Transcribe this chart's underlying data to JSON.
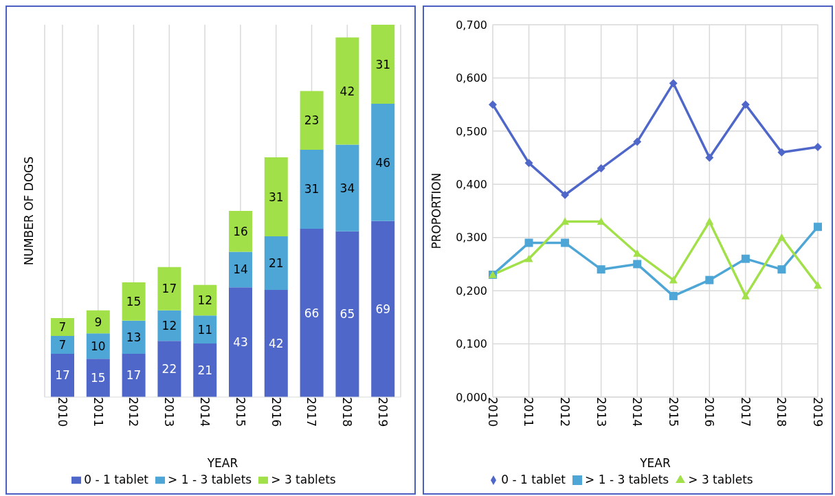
{
  "chart_data": [
    {
      "type": "bar",
      "stacked": true,
      "xlabel": "YEAR",
      "ylabel": "NUMBER OF DOGS",
      "categories": [
        "2010",
        "2011",
        "2012",
        "2013",
        "2014",
        "2015",
        "2016",
        "2017",
        "2018",
        "2019"
      ],
      "series": [
        {
          "name": "0 - 1 tablet",
          "color": "#4f67c8",
          "values": [
            17,
            15,
            17,
            22,
            21,
            43,
            42,
            66,
            65,
            69
          ]
        },
        {
          "name": "> 1 - 3 tablets",
          "color": "#4ea6d6",
          "values": [
            7,
            10,
            13,
            12,
            11,
            14,
            21,
            31,
            34,
            46
          ]
        },
        {
          "name": "> 3 tablets",
          "color": "#a2e04a",
          "values": [
            7,
            9,
            15,
            17,
            12,
            16,
            31,
            23,
            42,
            31
          ]
        }
      ],
      "data_labels": true,
      "grid": "x",
      "legend": "bottom"
    },
    {
      "type": "line",
      "xlabel": "YEAR",
      "ylabel": "PROPORTION",
      "categories": [
        "2010",
        "2011",
        "2012",
        "2013",
        "2014",
        "2015",
        "2016",
        "2017",
        "2018",
        "2019"
      ],
      "series": [
        {
          "name": "0 - 1 tablet",
          "color": "#4f67c8",
          "marker": "diamond",
          "values": [
            0.55,
            0.44,
            0.38,
            0.43,
            0.48,
            0.59,
            0.45,
            0.55,
            0.46,
            0.47
          ]
        },
        {
          "name": "> 1 - 3 tablets",
          "color": "#4ea6d6",
          "marker": "square",
          "values": [
            0.23,
            0.29,
            0.29,
            0.24,
            0.25,
            0.19,
            0.22,
            0.26,
            0.24,
            0.32
          ]
        },
        {
          "name": "> 3 tablets",
          "color": "#a2e04a",
          "marker": "triangle",
          "values": [
            0.23,
            0.26,
            0.33,
            0.33,
            0.27,
            0.22,
            0.33,
            0.19,
            0.3,
            0.21
          ]
        }
      ],
      "ylim": [
        0,
        0.7
      ],
      "yticks": [
        {
          "value": 0,
          "label": "0,000"
        },
        {
          "value": 0.1,
          "label": "0,100"
        },
        {
          "value": 0.2,
          "label": "0,200"
        },
        {
          "value": 0.3,
          "label": "0,300"
        },
        {
          "value": 0.4,
          "label": "0,400"
        },
        {
          "value": 0.5,
          "label": "0,500"
        },
        {
          "value": 0.6,
          "label": "0,600"
        },
        {
          "value": 0.7,
          "label": "0,700"
        }
      ],
      "grid": true,
      "legend": "bottom",
      "line_style": "solid"
    }
  ]
}
